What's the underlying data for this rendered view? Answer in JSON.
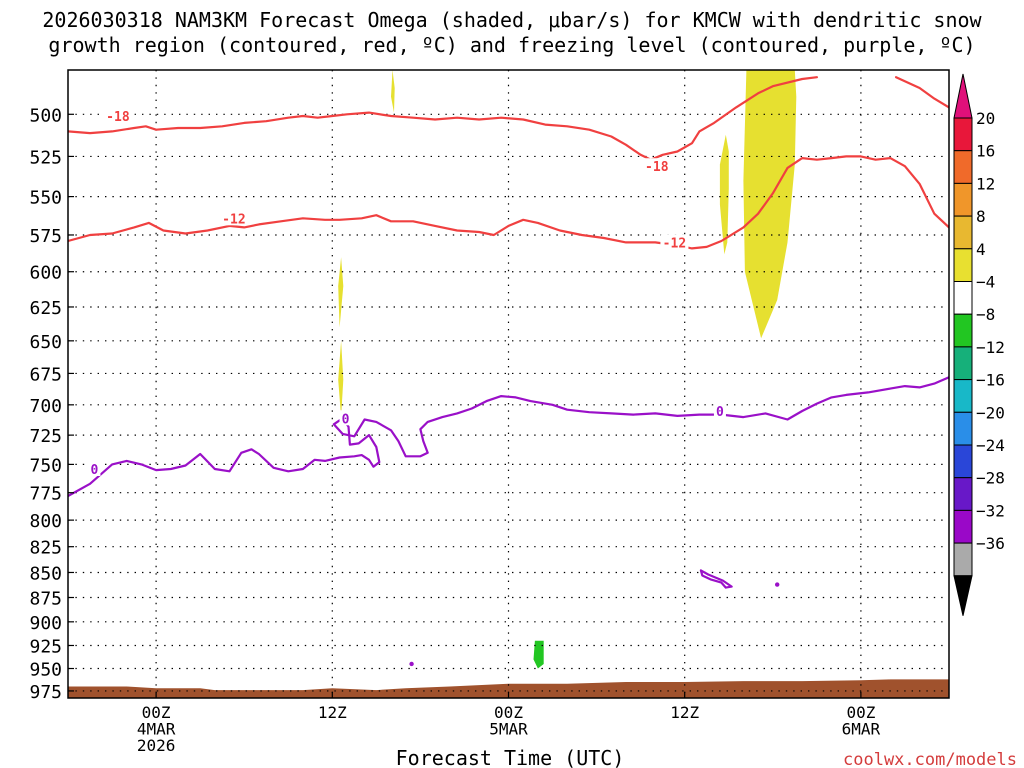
{
  "chart_data": {
    "type": "heatmap",
    "title_lines": [
      "2026030318 NAM3KM Forecast Omega (shaded, μbar/s) for KMCW with dendritic snow",
      "growth region (contoured, red, ºC) and freezing level (contoured, purple, ºC)"
    ],
    "xlabel": "Forecast Time (UTC)",
    "credit": "coolwx.com/models",
    "x_ticks": [
      {
        "t": 0,
        "lines": [
          "00Z",
          "4MAR",
          "2026"
        ]
      },
      {
        "t": 12,
        "lines": [
          "12Z"
        ]
      },
      {
        "t": 24,
        "lines": [
          "00Z",
          "5MAR"
        ]
      },
      {
        "t": 36,
        "lines": [
          "12Z"
        ]
      },
      {
        "t": 48,
        "lines": [
          "00Z",
          "6MAR"
        ]
      }
    ],
    "xlim": [
      -6,
      54
    ],
    "ylim": [
      983,
      475
    ],
    "y_scale": "log-pressure",
    "y_ticks": [
      500,
      525,
      550,
      575,
      600,
      625,
      650,
      675,
      700,
      725,
      750,
      775,
      800,
      825,
      850,
      875,
      900,
      925,
      950,
      975
    ],
    "grid": true,
    "colorbar": {
      "labels": [
        "20",
        "16",
        "12",
        "8",
        "4",
        "−4",
        "−8",
        "−12",
        "−16",
        "−20",
        "−24",
        "−28",
        "−32",
        "−36"
      ],
      "colors": [
        "#e8173a",
        "#f06a2a",
        "#f0962a",
        "#e8b830",
        "#e8e030",
        "#ffffff",
        "#22c622",
        "#16b07a",
        "#18b8c8",
        "#2a8ee8",
        "#2a46d8",
        "#6818c8",
        "#9a08c8",
        "#aaaaaa"
      ],
      "top_color": "#e0107a",
      "bottom_color": "#000000"
    },
    "contour_colors": {
      "dgz": "#f04040",
      "freezing": "#9a10c8",
      "omega_pos": "#e6e030",
      "omega_neg": "#22c622",
      "terrain": "#a0522d"
    },
    "contours": [
      {
        "label": "-18",
        "color": "dgz",
        "label_at": [
          [
            -2.6,
            501
          ],
          [
            34.1,
            531
          ]
        ],
        "points": [
          [
            -6,
            510
          ],
          [
            -4.5,
            511
          ],
          [
            -3,
            510
          ],
          [
            -1.5,
            508
          ],
          [
            -0.7,
            507
          ],
          [
            0,
            509
          ],
          [
            1.5,
            508
          ],
          [
            3,
            508
          ],
          [
            4.5,
            507
          ],
          [
            6,
            505
          ],
          [
            7.5,
            504
          ],
          [
            9,
            502
          ],
          [
            10,
            501
          ],
          [
            11,
            502
          ],
          [
            12,
            501
          ],
          [
            13,
            500
          ],
          [
            14.5,
            499
          ],
          [
            16,
            501
          ],
          [
            17.5,
            502
          ],
          [
            19,
            503
          ],
          [
            20.5,
            502
          ],
          [
            22,
            503
          ],
          [
            23.5,
            502
          ],
          [
            25,
            503
          ],
          [
            26.5,
            506
          ],
          [
            28,
            507
          ],
          [
            29.5,
            509
          ],
          [
            31,
            513
          ],
          [
            32,
            518
          ],
          [
            33,
            524
          ],
          [
            33.7,
            527
          ],
          [
            34.5,
            524
          ],
          [
            35.5,
            522
          ],
          [
            36.5,
            517
          ],
          [
            37,
            510
          ],
          [
            38,
            505
          ],
          [
            39.5,
            496
          ],
          [
            41,
            488
          ],
          [
            42,
            484
          ],
          [
            44,
            480
          ],
          [
            45,
            479
          ]
        ]
      },
      {
        "label": "-18",
        "color": "dgz",
        "label_at": [],
        "points": [
          [
            50.4,
            479
          ],
          [
            52,
            485
          ],
          [
            53,
            491
          ],
          [
            54,
            496
          ]
        ]
      },
      {
        "label": "-12",
        "color": "dgz",
        "label_at": [
          [
            5.3,
            564
          ],
          [
            35.3,
            580
          ]
        ],
        "points": [
          [
            -6,
            579
          ],
          [
            -4.5,
            575
          ],
          [
            -3,
            574
          ],
          [
            -1.5,
            570
          ],
          [
            -0.5,
            567
          ],
          [
            0.5,
            572
          ],
          [
            2,
            574
          ],
          [
            3.5,
            572
          ],
          [
            5,
            569
          ],
          [
            6,
            570
          ],
          [
            7,
            568
          ],
          [
            8.5,
            566
          ],
          [
            10,
            564
          ],
          [
            11.5,
            565
          ],
          [
            12.5,
            565
          ],
          [
            14,
            564
          ],
          [
            15,
            562
          ],
          [
            16,
            566
          ],
          [
            17.5,
            566
          ],
          [
            19,
            569
          ],
          [
            20.5,
            572
          ],
          [
            22,
            573
          ],
          [
            23,
            575
          ],
          [
            24,
            569
          ],
          [
            25,
            565
          ],
          [
            26,
            567
          ],
          [
            27.5,
            572
          ],
          [
            29,
            575
          ],
          [
            30.5,
            577
          ],
          [
            32,
            580
          ],
          [
            34,
            580
          ],
          [
            35.5,
            582
          ],
          [
            36.5,
            584
          ],
          [
            37.5,
            583
          ],
          [
            38.5,
            579
          ],
          [
            40,
            570
          ],
          [
            41,
            561
          ],
          [
            42,
            548
          ],
          [
            43,
            532
          ],
          [
            44,
            526
          ],
          [
            45,
            527
          ],
          [
            46,
            526
          ],
          [
            47,
            525
          ],
          [
            48,
            525
          ],
          [
            49,
            527
          ],
          [
            50,
            526
          ],
          [
            51,
            531
          ],
          [
            52,
            542
          ],
          [
            53,
            561
          ],
          [
            54,
            570
          ]
        ]
      },
      {
        "label": "0",
        "color": "freezing",
        "label_at": [
          [
            -4.2,
            754
          ],
          [
            12.9,
            711
          ],
          [
            38.4,
            705
          ]
        ],
        "points": [
          [
            -6,
            778
          ],
          [
            -4.5,
            767
          ],
          [
            -3,
            750
          ],
          [
            -2,
            747
          ],
          [
            -1,
            750
          ],
          [
            0,
            755
          ],
          [
            1,
            754
          ],
          [
            2,
            751
          ],
          [
            3,
            741
          ],
          [
            4,
            754
          ],
          [
            5,
            756
          ],
          [
            5.8,
            740
          ],
          [
            6.5,
            737
          ],
          [
            7,
            741
          ],
          [
            8,
            753
          ],
          [
            9,
            756
          ],
          [
            10,
            754
          ],
          [
            10.8,
            746
          ],
          [
            11.5,
            747
          ],
          [
            12.5,
            744
          ],
          [
            13.5,
            743
          ],
          [
            14,
            742
          ],
          [
            14.5,
            746
          ],
          [
            14.8,
            752
          ],
          [
            15.2,
            748
          ],
          [
            15,
            735
          ],
          [
            14.5,
            725
          ],
          [
            13.8,
            732
          ],
          [
            13.2,
            733
          ],
          [
            13.1,
            718
          ],
          [
            12.7,
            711
          ],
          [
            12.1,
            716
          ],
          [
            12.7,
            724
          ],
          [
            13.5,
            726
          ],
          [
            14.2,
            712
          ],
          [
            15,
            714
          ],
          [
            16,
            721
          ],
          [
            16.5,
            730
          ],
          [
            17,
            743
          ],
          [
            18,
            743
          ],
          [
            18.5,
            740
          ],
          [
            18.2,
            730
          ],
          [
            18,
            720
          ],
          [
            18.5,
            714
          ],
          [
            19.5,
            710
          ],
          [
            20.5,
            707
          ],
          [
            21.5,
            703
          ],
          [
            22.5,
            697
          ],
          [
            23.5,
            693
          ],
          [
            24.5,
            694
          ],
          [
            25.5,
            697
          ],
          [
            27,
            700
          ],
          [
            28,
            704
          ],
          [
            29.5,
            706
          ],
          [
            31,
            707
          ],
          [
            32.5,
            708
          ],
          [
            34,
            707
          ],
          [
            35.5,
            709
          ],
          [
            37,
            708
          ],
          [
            38.5,
            708
          ],
          [
            40,
            710
          ],
          [
            41.5,
            707
          ],
          [
            43,
            712
          ],
          [
            44,
            705
          ],
          [
            45,
            699
          ],
          [
            46,
            694
          ],
          [
            47,
            692
          ],
          [
            48.5,
            690
          ],
          [
            50,
            687
          ],
          [
            51,
            685
          ],
          [
            52,
            686
          ],
          [
            53,
            683
          ],
          [
            54,
            678
          ]
        ]
      },
      {
        "label": "",
        "color": "freezing",
        "label_at": [],
        "points": [
          [
            37.1,
            848
          ],
          [
            37.6,
            852
          ],
          [
            38.6,
            858
          ],
          [
            39.2,
            864
          ],
          [
            38.8,
            865
          ],
          [
            38.5,
            860
          ],
          [
            37.8,
            857
          ],
          [
            37.2,
            853
          ],
          [
            37.1,
            848
          ]
        ]
      }
    ],
    "filled_blobs": [
      {
        "color": "omega_pos",
        "points": [
          [
            40.2,
            475
          ],
          [
            43.5,
            475
          ],
          [
            43.6,
            490
          ],
          [
            43.5,
            530
          ],
          [
            43.0,
            580
          ],
          [
            42.3,
            620
          ],
          [
            41.2,
            648
          ],
          [
            40.1,
            600
          ],
          [
            40.0,
            540
          ],
          [
            40.2,
            475
          ]
        ]
      },
      {
        "color": "omega_pos",
        "points": [
          [
            38.8,
            512
          ],
          [
            39.0,
            522
          ],
          [
            39.0,
            545
          ],
          [
            38.9,
            580
          ],
          [
            38.7,
            588
          ],
          [
            38.4,
            555
          ],
          [
            38.4,
            530
          ],
          [
            38.8,
            512
          ]
        ]
      },
      {
        "color": "omega_pos",
        "points": [
          [
            12.6,
            590
          ],
          [
            12.75,
            610
          ],
          [
            12.5,
            640
          ],
          [
            12.4,
            610
          ],
          [
            12.6,
            590
          ]
        ]
      },
      {
        "color": "omega_pos",
        "points": [
          [
            12.6,
            650
          ],
          [
            12.75,
            680
          ],
          [
            12.6,
            710
          ],
          [
            12.4,
            680
          ],
          [
            12.6,
            650
          ]
        ]
      },
      {
        "color": "omega_pos",
        "points": [
          [
            16.1,
            475
          ],
          [
            16.25,
            485
          ],
          [
            16.2,
            499
          ],
          [
            16.0,
            490
          ],
          [
            16.1,
            475
          ]
        ]
      },
      {
        "color": "omega_neg",
        "points": [
          [
            25.8,
            920
          ],
          [
            26.4,
            920
          ],
          [
            26.4,
            945
          ],
          [
            26.0,
            950
          ],
          [
            25.7,
            940
          ],
          [
            25.8,
            920
          ]
        ]
      }
    ],
    "markers": [
      {
        "color": "freezing",
        "point": [
          17.4,
          945
        ]
      },
      {
        "color": "freezing",
        "point": [
          42.3,
          862
        ]
      }
    ],
    "terrain": {
      "color": "terrain",
      "top": [
        [
          -6,
          970
        ],
        [
          -2,
          970
        ],
        [
          0,
          972
        ],
        [
          3,
          972
        ],
        [
          4,
          974
        ],
        [
          10,
          974
        ],
        [
          12,
          972
        ],
        [
          15,
          974
        ],
        [
          17,
          972
        ],
        [
          20,
          970
        ],
        [
          24,
          967
        ],
        [
          28,
          967
        ],
        [
          32,
          965
        ],
        [
          36,
          965
        ],
        [
          40,
          964
        ],
        [
          44,
          964
        ],
        [
          48,
          963
        ],
        [
          50,
          962
        ],
        [
          54,
          962
        ]
      ]
    }
  }
}
